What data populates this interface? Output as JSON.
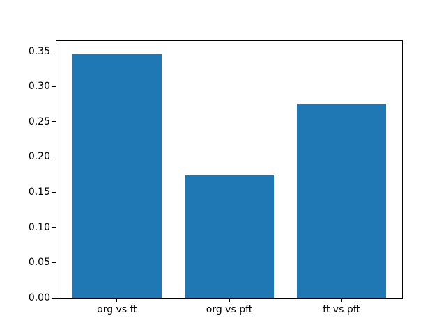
{
  "chart_data": {
    "type": "bar",
    "title": "",
    "xlabel": "",
    "ylabel": "",
    "categories": [
      "org vs ft",
      "org vs pft",
      "ft vs pft"
    ],
    "values": [
      0.347,
      0.175,
      0.276
    ],
    "yticks": [
      0.0,
      0.05,
      0.1,
      0.15,
      0.2,
      0.25,
      0.3,
      0.35
    ],
    "ytick_labels": [
      "0.00",
      "0.05",
      "0.10",
      "0.15",
      "0.20",
      "0.25",
      "0.30",
      "0.35"
    ],
    "ylim": [
      0,
      0.3644
    ],
    "bar_color": "#1f77b4",
    "axis_color": "#000000",
    "background_color": "#ffffff",
    "grid": false,
    "legend": null,
    "bar_width_data_units": 0.8
  }
}
